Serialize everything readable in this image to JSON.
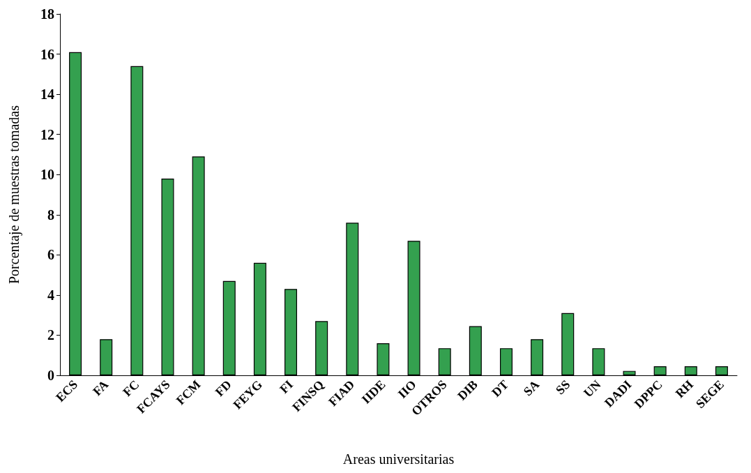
{
  "chart_data": {
    "type": "bar",
    "xlabel": "Areas universitarias",
    "ylabel": "Porcentaje de muestras tomadas",
    "categories": [
      "ECS",
      "FA",
      "FC",
      "FCAYS",
      "FCM",
      "FD",
      "FEYG",
      "FI",
      "FINSQ",
      "FIAD",
      "IIDE",
      "IIO",
      "OTROS",
      "DIB",
      "DT",
      "SA",
      "SS",
      "UN",
      "DADI",
      "DPPC",
      "RH",
      "SEGE"
    ],
    "values": [
      16.1,
      1.8,
      15.4,
      9.8,
      10.9,
      4.7,
      5.6,
      4.3,
      2.7,
      7.6,
      1.6,
      6.7,
      1.35,
      2.45,
      1.35,
      1.8,
      3.1,
      1.35,
      0.22,
      0.45,
      0.45,
      0.45
    ],
    "color": "#34a04f",
    "ylim": [
      0,
      18
    ],
    "yticks": [
      0,
      2,
      4,
      6,
      8,
      10,
      12,
      14,
      16,
      18
    ],
    "grid": false
  }
}
